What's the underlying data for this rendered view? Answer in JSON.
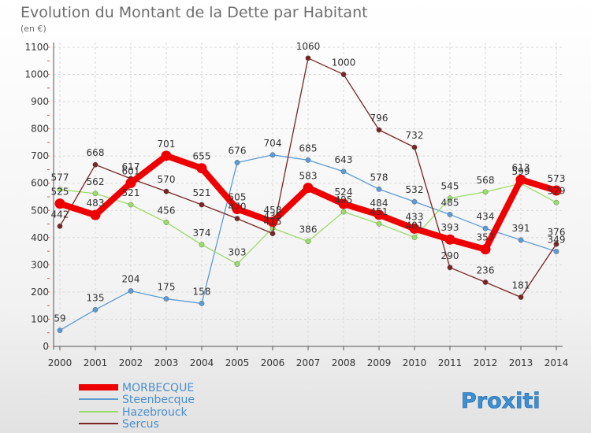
{
  "chart_data": {
    "type": "line",
    "title": "Evolution du Montant de la Dette par Habitant",
    "subtitle": "(en €)",
    "x": [
      "2000",
      "2001",
      "2002",
      "2003",
      "2004",
      "2005",
      "2006",
      "2007",
      "2008",
      "2009",
      "2010",
      "2011",
      "2012",
      "2013",
      "2014"
    ],
    "ylim": [
      0,
      1100
    ],
    "yticks": [
      0,
      100,
      200,
      300,
      400,
      500,
      600,
      700,
      800,
      900,
      1000,
      1100
    ],
    "grid": true,
    "legend_position": "bottom-left",
    "series": [
      {
        "name": "Steenbecque",
        "color": "#5b9bd5",
        "values": [
          59,
          135,
          204,
          175,
          158,
          676,
          704,
          685,
          643,
          578,
          532,
          485,
          434,
          391,
          349
        ]
      },
      {
        "name": "Hazebrouck",
        "color": "#99dd66",
        "values": [
          577,
          562,
          521,
          456,
          374,
          303,
          435,
          386,
          495,
          451,
          401,
          545,
          568,
          599,
          529
        ]
      },
      {
        "name": "Sercus",
        "color": "#7a2424",
        "values": [
          442,
          668,
          617,
          570,
          521,
          470,
          415,
          1060,
          1000,
          796,
          732,
          290,
          236,
          181,
          376
        ]
      },
      {
        "name": "MORBECQUE",
        "color": "#ee0000",
        "values": [
          525,
          483,
          601,
          701,
          655,
          505,
          458,
          583,
          524,
          484,
          433,
          393,
          357,
          613,
          573
        ]
      }
    ]
  },
  "legend": {
    "morbecque": "MORBECQUE",
    "steenbecque": "Steenbecque",
    "hazebrouck": "Hazebrouck",
    "sercus": "Sercus"
  },
  "logo": {
    "text": "Proxiti"
  }
}
